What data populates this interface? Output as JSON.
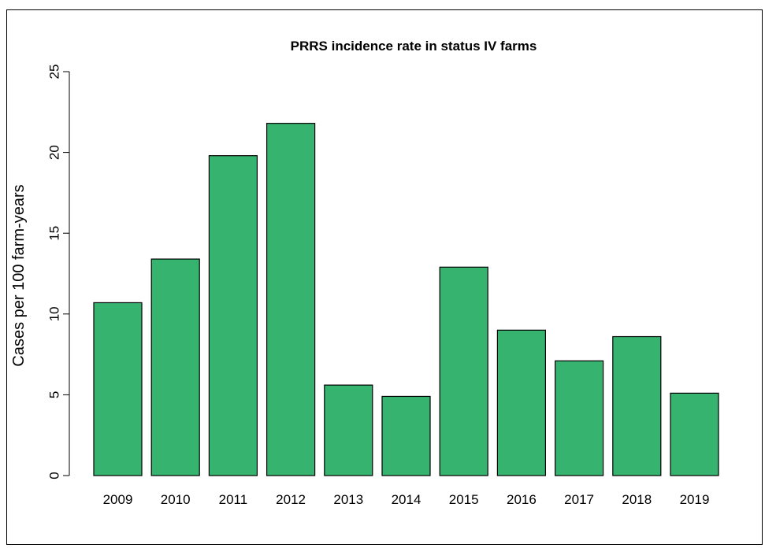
{
  "chart_data": {
    "type": "bar",
    "title": "PRRS incidence rate in status IV farms",
    "xlabel": "",
    "ylabel": "Cases per 100 farm-years",
    "categories": [
      "2009",
      "2010",
      "2011",
      "2012",
      "2013",
      "2014",
      "2015",
      "2016",
      "2017",
      "2018",
      "2019"
    ],
    "values": [
      10.7,
      13.4,
      19.8,
      21.8,
      5.6,
      4.9,
      12.9,
      9.0,
      7.1,
      8.6,
      5.1
    ],
    "ylim": [
      0,
      25
    ],
    "yticks": [
      0,
      5,
      10,
      15,
      20,
      25
    ],
    "grid": false,
    "colors": {
      "bar": "#36b36e",
      "bar_border": "#000000"
    }
  }
}
